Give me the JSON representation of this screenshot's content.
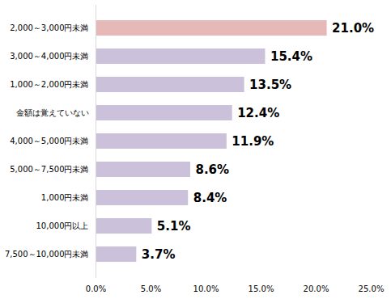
{
  "chart_data": {
    "type": "bar",
    "orientation": "horizontal",
    "categories": [
      "2,000～3,000円未満",
      "3,000～4,000円未満",
      "1,000～2,000円未満",
      "金額は覚えていない",
      "4,000～5,000円未満",
      "5,000～7,500円未満",
      "1,000円未満",
      "10,000円以上",
      "7,500～10,000円未満"
    ],
    "values": [
      21.0,
      15.4,
      13.5,
      12.4,
      11.9,
      8.6,
      8.4,
      5.1,
      3.7
    ],
    "value_labels": [
      "21.0%",
      "15.4%",
      "13.5%",
      "12.4%",
      "11.9%",
      "8.6%",
      "8.4%",
      "5.1%",
      "3.7%"
    ],
    "colors": [
      "#e6b9b8",
      "#ccc1da",
      "#ccc1da",
      "#ccc1da",
      "#ccc1da",
      "#ccc1da",
      "#ccc1da",
      "#ccc1da",
      "#ccc1da"
    ],
    "xlim": [
      0,
      25
    ],
    "xticks": [
      {
        "value": 0,
        "label": "0.0%"
      },
      {
        "value": 5,
        "label": "5.0%"
      },
      {
        "value": 10,
        "label": "10.0%"
      },
      {
        "value": 15,
        "label": "15.0%"
      },
      {
        "value": 20,
        "label": "20.0%"
      },
      {
        "value": 25,
        "label": "25.0%"
      }
    ],
    "grid": false,
    "data_labels": true
  }
}
